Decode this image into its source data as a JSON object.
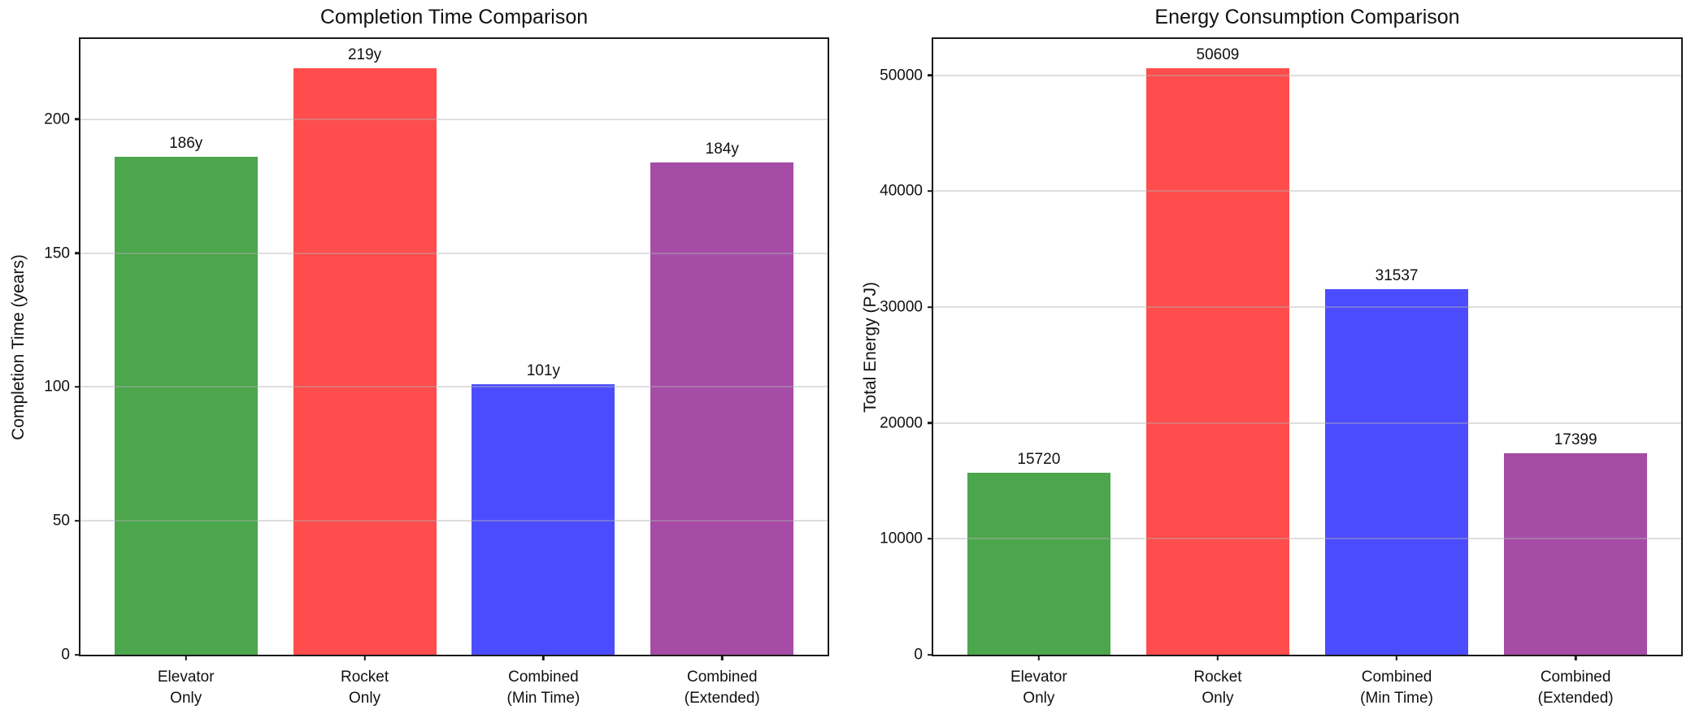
{
  "figure": {
    "background_color": "#ffffff",
    "text_color": "#111111",
    "spine_color": "#1a1a1a",
    "gridline_color": "#e6e6e6"
  },
  "chart_data": [
    {
      "type": "bar",
      "title": "Completion Time Comparison",
      "xlabel": "",
      "ylabel": "Completion Time (years)",
      "categories": [
        "Elevator\nOnly",
        "Rocket\nOnly",
        "Combined\n(Min Time)",
        "Combined\n(Extended)"
      ],
      "values": [
        186,
        219,
        101,
        184
      ],
      "bar_labels": [
        "186y",
        "219y",
        "101y",
        "184y"
      ],
      "bar_colors": [
        "#4CA64C",
        "#FF4C4C",
        "#4C4CFF",
        "#A64CA6"
      ],
      "yticks": [
        0,
        50,
        100,
        150,
        200
      ],
      "ylim": [
        0,
        230
      ],
      "grid": true,
      "legend": false
    },
    {
      "type": "bar",
      "title": "Energy Consumption Comparison",
      "xlabel": "",
      "ylabel": "Total Energy (PJ)",
      "categories": [
        "Elevator\nOnly",
        "Rocket\nOnly",
        "Combined\n(Min Time)",
        "Combined\n(Extended)"
      ],
      "values": [
        15720,
        50609,
        31537,
        17399
      ],
      "bar_labels": [
        "15720",
        "50609",
        "31537",
        "17399"
      ],
      "bar_colors": [
        "#4CA64C",
        "#FF4C4C",
        "#4C4CFF",
        "#A64CA6"
      ],
      "yticks": [
        0,
        10000,
        20000,
        30000,
        40000,
        50000
      ],
      "ylim": [
        0,
        53140
      ],
      "grid": true,
      "legend": false
    }
  ]
}
